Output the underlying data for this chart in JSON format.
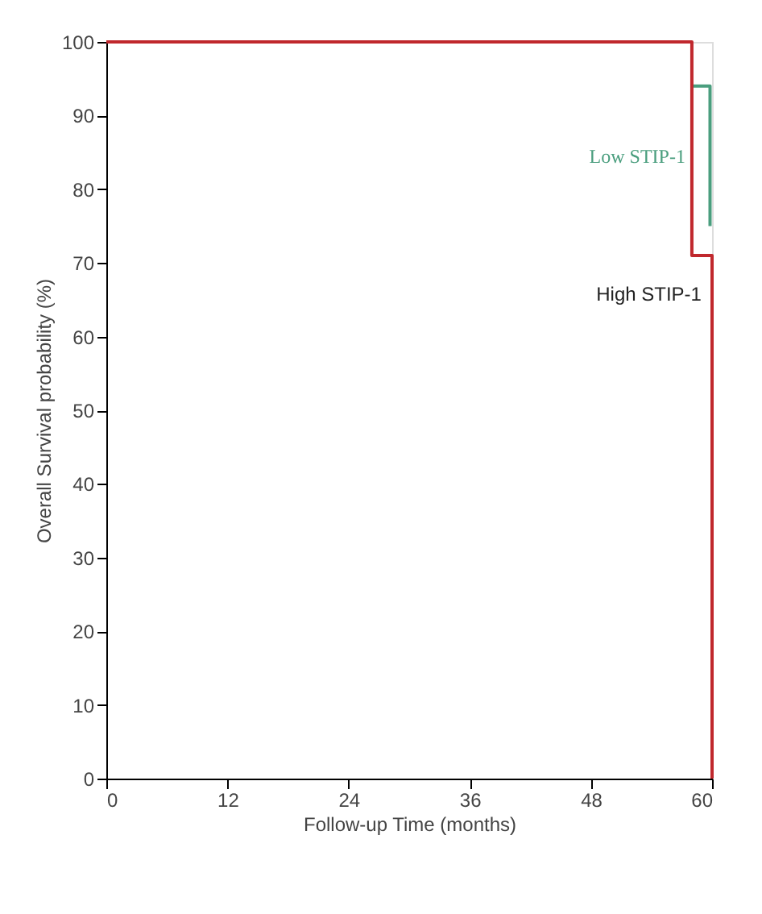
{
  "chart_data": {
    "type": "step",
    "xlabel": "Follow-up Time (months)",
    "ylabel": "Overall Survival probability (%)",
    "series": [
      {
        "name": "Low STIP-1",
        "color": "#4a9e7e",
        "x": [
          58,
          59.8
        ],
        "values": [
          94,
          75
        ]
      },
      {
        "name": "High STIP-1",
        "color": "#c0282d",
        "x": [
          0,
          58,
          60
        ],
        "values": [
          100,
          71,
          0
        ]
      }
    ],
    "xlim": [
      0,
      60
    ],
    "xticks": [
      0,
      12,
      24,
      36,
      48,
      60
    ],
    "ylim": [
      0,
      100
    ],
    "yticks": [
      0,
      10,
      20,
      30,
      40,
      50,
      60,
      70,
      80,
      90,
      100
    ],
    "grid": false
  }
}
